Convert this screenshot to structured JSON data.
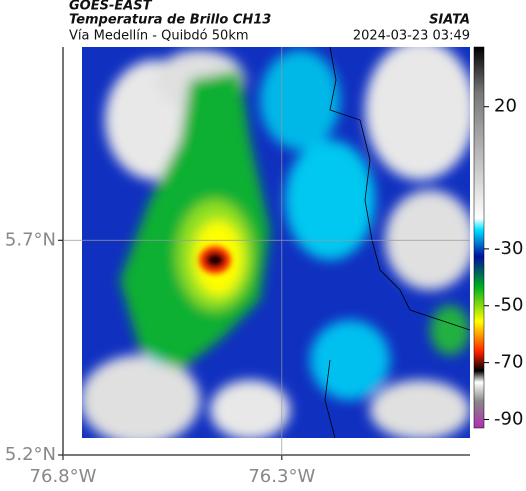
{
  "chart_data": {
    "type": "map",
    "title": "GOES-EAST",
    "subtitle": "Temperatura de Brillo CH13",
    "source": "SIATA",
    "location": "Vía Medellín - Quibdó 50km",
    "timestamp": "2024-03-23 03:49",
    "xlim": [
      -76.8,
      -75.87
    ],
    "ylim": [
      5.2,
      6.15
    ],
    "xticks": [
      {
        "value": -76.8,
        "label": "76.8°W"
      },
      {
        "value": -76.3,
        "label": "76.3°W"
      }
    ],
    "yticks": [
      {
        "value": 5.2,
        "label": "5.2°N"
      },
      {
        "value": 5.7,
        "label": "5.7°N"
      }
    ],
    "grid": true,
    "colorbar": {
      "clim": [
        41,
        -93
      ],
      "ticks": [
        20,
        -30,
        -50,
        -70,
        -90
      ]
    }
  }
}
